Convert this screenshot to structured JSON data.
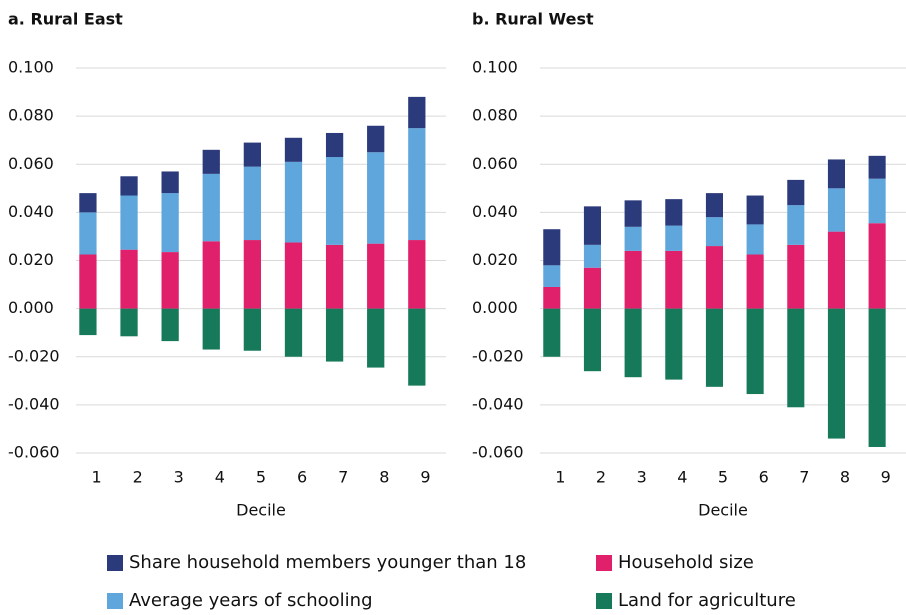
{
  "legend": [
    {
      "name": "Share household members younger than 18",
      "color": "#2b3a7a"
    },
    {
      "name": "Household size",
      "color": "#e0206a"
    },
    {
      "name": "Average years of schooling",
      "color": "#5ea6dc"
    },
    {
      "name": "Land for agriculture",
      "color": "#167a5a"
    }
  ],
  "chart_data": [
    {
      "type": "bar",
      "stacked": true,
      "title": "a. Rural East",
      "x_label": "Decile",
      "categories": [
        "1",
        "2",
        "3",
        "4",
        "5",
        "6",
        "7",
        "8",
        "9"
      ],
      "ylim": [
        -0.06,
        0.1
      ],
      "yticks": [
        {
          "value": -0.06,
          "label": "-0.060"
        },
        {
          "value": -0.04,
          "label": "-0.040"
        },
        {
          "value": -0.02,
          "label": "-0.020"
        },
        {
          "value": 0,
          "label": "0.000"
        },
        {
          "value": 0.02,
          "label": "0.020"
        },
        {
          "value": 0.04,
          "label": "0.040"
        },
        {
          "value": 0.06,
          "label": "0.060"
        },
        {
          "value": 0.08,
          "label": "0.080"
        },
        {
          "value": 0.1,
          "label": "0.100"
        }
      ],
      "series": [
        {
          "values": [
            0.008,
            0.008,
            0.009,
            0.01,
            0.01,
            0.01,
            0.01,
            0.011,
            0.013
          ]
        },
        {
          "values": [
            0.0225,
            0.0245,
            0.0235,
            0.028,
            0.0285,
            0.0275,
            0.0265,
            0.027,
            0.0285
          ]
        },
        {
          "values": [
            0.0175,
            0.0225,
            0.0245,
            0.028,
            0.0305,
            0.0335,
            0.0365,
            0.038,
            0.0465
          ]
        },
        {
          "values": [
            -0.011,
            -0.0115,
            -0.0135,
            -0.017,
            -0.0175,
            -0.02,
            -0.022,
            -0.0245,
            -0.032
          ]
        }
      ]
    },
    {
      "type": "bar",
      "stacked": true,
      "title": "b. Rural West",
      "x_label": "Decile",
      "categories": [
        "1",
        "2",
        "3",
        "4",
        "5",
        "6",
        "7",
        "8",
        "9"
      ],
      "ylim": [
        -0.06,
        0.1
      ],
      "yticks": [
        {
          "value": -0.06,
          "label": "-0.060"
        },
        {
          "value": -0.04,
          "label": "-0.040"
        },
        {
          "value": -0.02,
          "label": "-0.020"
        },
        {
          "value": 0,
          "label": "0.000"
        },
        {
          "value": 0.02,
          "label": "0.020"
        },
        {
          "value": 0.04,
          "label": "0.040"
        },
        {
          "value": 0.06,
          "label": "0.060"
        },
        {
          "value": 0.08,
          "label": "0.080"
        },
        {
          "value": 0.1,
          "label": "0.100"
        }
      ],
      "series": [
        {
          "values": [
            0.015,
            0.016,
            0.011,
            0.011,
            0.01,
            0.012,
            0.0105,
            0.012,
            0.0095
          ]
        },
        {
          "values": [
            0.009,
            0.017,
            0.024,
            0.024,
            0.026,
            0.0225,
            0.0265,
            0.032,
            0.0355
          ]
        },
        {
          "values": [
            0.009,
            0.0095,
            0.01,
            0.0105,
            0.012,
            0.0125,
            0.0165,
            0.018,
            0.0185
          ]
        },
        {
          "values": [
            -0.02,
            -0.026,
            -0.0285,
            -0.0295,
            -0.0325,
            -0.0355,
            -0.041,
            -0.054,
            -0.0575
          ]
        }
      ]
    }
  ]
}
